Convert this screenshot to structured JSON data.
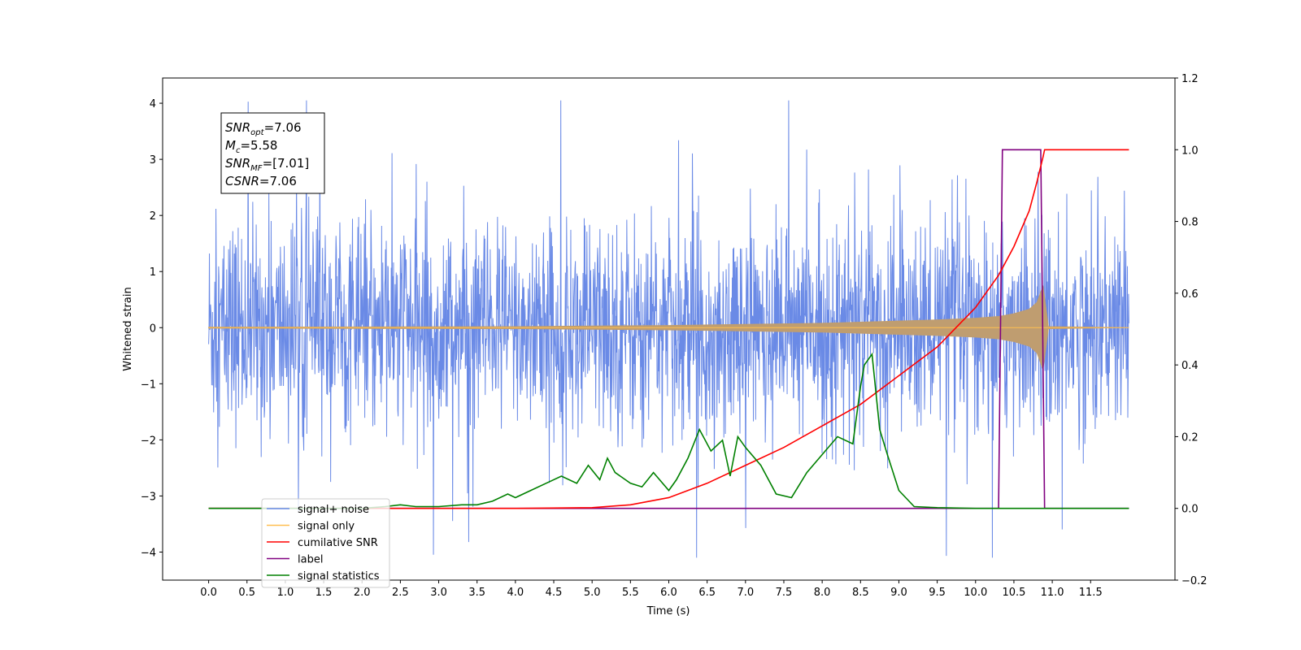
{
  "chart_data": {
    "type": "line",
    "xlabel": "Time (s)",
    "ylabel": "Whitened strain",
    "xlim": [
      -0.6,
      12.6
    ],
    "ylim": [
      -4.5,
      4.45
    ],
    "y2lim": [
      -0.2,
      1.2
    ],
    "grid": false,
    "x_ticks": [
      {
        "v": 0.0,
        "label": "0.0"
      },
      {
        "v": 0.5,
        "label": "0.5"
      },
      {
        "v": 1.0,
        "label": "1.0"
      },
      {
        "v": 1.5,
        "label": "1.5"
      },
      {
        "v": 2.0,
        "label": "2.0"
      },
      {
        "v": 2.5,
        "label": "2.5"
      },
      {
        "v": 3.0,
        "label": "3.0"
      },
      {
        "v": 3.5,
        "label": "3.5"
      },
      {
        "v": 4.0,
        "label": "4.0"
      },
      {
        "v": 4.5,
        "label": "4.5"
      },
      {
        "v": 5.0,
        "label": "5.0"
      },
      {
        "v": 5.5,
        "label": "5.5"
      },
      {
        "v": 6.0,
        "label": "6.0"
      },
      {
        "v": 6.5,
        "label": "6.5"
      },
      {
        "v": 7.0,
        "label": "7.0"
      },
      {
        "v": 7.5,
        "label": "7.5"
      },
      {
        "v": 8.0,
        "label": "8.0"
      },
      {
        "v": 8.5,
        "label": "8.5"
      },
      {
        "v": 9.0,
        "label": "9.0"
      },
      {
        "v": 9.5,
        "label": "9.5"
      },
      {
        "v": 10.0,
        "label": "10.0"
      },
      {
        "v": 10.5,
        "label": "10.5"
      },
      {
        "v": 11.0,
        "label": "11.0"
      },
      {
        "v": 11.5,
        "label": "11.5"
      }
    ],
    "y_ticks": [
      {
        "v": 4,
        "label": "4"
      },
      {
        "v": 3,
        "label": "3"
      },
      {
        "v": 2,
        "label": "2"
      },
      {
        "v": 1,
        "label": "1"
      },
      {
        "v": 0,
        "label": "0"
      },
      {
        "v": -1,
        "label": "−1"
      },
      {
        "v": -2,
        "label": "−2"
      },
      {
        "v": -3,
        "label": "−3"
      },
      {
        "v": -4,
        "label": "−4"
      }
    ],
    "y2_ticks": [
      {
        "v": 1.2,
        "label": "1.2"
      },
      {
        "v": 1.0,
        "label": "1.0"
      },
      {
        "v": 0.8,
        "label": "0.8"
      },
      {
        "v": 0.6,
        "label": "0.6"
      },
      {
        "v": 0.4,
        "label": "0.4"
      },
      {
        "v": 0.2,
        "label": "0.2"
      },
      {
        "v": 0.0,
        "label": "0.0"
      },
      {
        "v": -0.2,
        "label": "−0.2"
      }
    ],
    "noise_envelope": {
      "t_start": 0.0,
      "t_end": 12.0,
      "band_typical": [
        -1.5,
        1.5
      ],
      "spike_max": 4.05,
      "spike_min": -4.1
    },
    "signal_envelope": {
      "t": [
        0.0,
        2.0,
        4.0,
        5.0,
        6.0,
        7.0,
        8.0,
        9.0,
        9.5,
        10.0,
        10.3,
        10.5,
        10.7,
        10.8,
        10.88,
        10.95,
        12.0
      ],
      "amp": [
        0.01,
        0.015,
        0.02,
        0.03,
        0.04,
        0.06,
        0.08,
        0.12,
        0.14,
        0.17,
        0.2,
        0.25,
        0.33,
        0.45,
        0.75,
        0.02,
        0.0
      ]
    },
    "series": [
      {
        "name": "cumilative SNR",
        "color": "#ff0000",
        "axis": "right",
        "x": [
          0,
          4.0,
          5.0,
          5.5,
          6.0,
          6.5,
          7.0,
          7.5,
          8.0,
          8.5,
          9.0,
          9.5,
          10.0,
          10.3,
          10.5,
          10.7,
          10.8,
          10.88,
          10.9,
          12.0
        ],
        "y": [
          0,
          0,
          0.002,
          0.01,
          0.03,
          0.07,
          0.12,
          0.17,
          0.23,
          0.29,
          0.37,
          0.45,
          0.56,
          0.65,
          0.73,
          0.83,
          0.91,
          0.98,
          1.0,
          1.0
        ]
      },
      {
        "name": "label",
        "color": "#800080",
        "axis": "right",
        "x": [
          0,
          10.3,
          10.35,
          10.85,
          10.9,
          12.0
        ],
        "y": [
          0,
          0,
          1.0,
          1.0,
          0,
          0
        ]
      },
      {
        "name": "signal statistics",
        "color": "#008000",
        "axis": "right",
        "x": [
          0,
          2.0,
          2.3,
          2.5,
          2.7,
          3.0,
          3.3,
          3.5,
          3.7,
          3.9,
          4.0,
          4.2,
          4.4,
          4.6,
          4.8,
          4.95,
          5.1,
          5.2,
          5.3,
          5.5,
          5.65,
          5.8,
          6.0,
          6.1,
          6.25,
          6.4,
          6.55,
          6.7,
          6.8,
          6.9,
          7.0,
          7.2,
          7.4,
          7.6,
          7.8,
          8.0,
          8.2,
          8.4,
          8.5,
          8.55,
          8.65,
          8.75,
          8.85,
          9.0,
          9.2,
          9.5,
          10.0,
          12.0
        ],
        "y": [
          0,
          0,
          0.005,
          0.01,
          0.005,
          0.005,
          0.01,
          0.01,
          0.02,
          0.04,
          0.03,
          0.05,
          0.07,
          0.09,
          0.07,
          0.12,
          0.08,
          0.14,
          0.1,
          0.07,
          0.06,
          0.1,
          0.05,
          0.08,
          0.14,
          0.22,
          0.16,
          0.19,
          0.09,
          0.2,
          0.17,
          0.12,
          0.04,
          0.03,
          0.1,
          0.15,
          0.2,
          0.18,
          0.34,
          0.4,
          0.43,
          0.22,
          0.15,
          0.05,
          0.005,
          0.002,
          0.0,
          0.0
        ]
      }
    ],
    "legend": {
      "placement": "lower-left",
      "entries": [
        {
          "label": "signal+ noise",
          "color": "#6a8ae6"
        },
        {
          "label": "signal only",
          "color": "#ffbf50"
        },
        {
          "label": "cumilative SNR",
          "color": "#ff0000"
        },
        {
          "label": "label",
          "color": "#800080"
        },
        {
          "label": "signal statistics",
          "color": "#008000"
        }
      ]
    },
    "stats_box": {
      "placement": "top-left",
      "lines": [
        {
          "sym": "SNR",
          "sub": "opt",
          "val": "=7.06"
        },
        {
          "sym": "M",
          "sub": "c",
          "val": "=5.58"
        },
        {
          "sym": "SNR",
          "sub": "MF",
          "val": "=[7.01]"
        },
        {
          "sym": "CSNR",
          "sub": "",
          "val": "=7.06"
        }
      ]
    }
  }
}
